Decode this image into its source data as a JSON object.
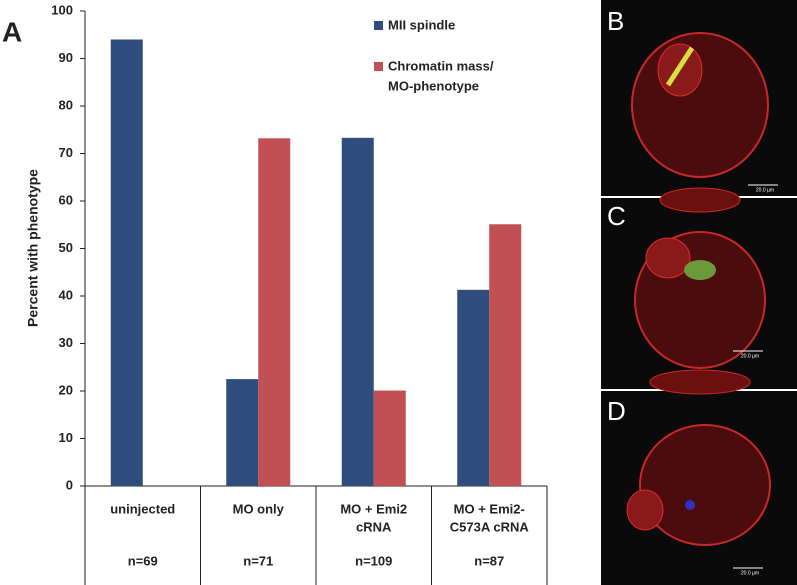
{
  "chart_data": {
    "type": "bar",
    "panel_label": "A",
    "y_label": "Percent with phenotype",
    "categories": [
      [
        "uninjected"
      ],
      [
        "MO only"
      ],
      [
        "MO + Emi2",
        "cRNA"
      ],
      [
        "MO + Emi2-",
        "C573A cRNA"
      ]
    ],
    "sample_sizes": [
      "n=69",
      "n=71",
      "n=109",
      "n=87"
    ],
    "series": [
      {
        "name": "MII spindle",
        "color": "#2e4c7c",
        "values": [
          94,
          22.5,
          73.3,
          41.3
        ]
      },
      {
        "name": [
          "Chromatin mass/",
          "MO-phenotype"
        ],
        "color": "#c05054",
        "values": [
          0,
          73.2,
          20.1,
          55.1
        ]
      }
    ],
    "ylim": [
      0,
      100
    ],
    "yticks": [
      0,
      10,
      20,
      30,
      40,
      50,
      60,
      70,
      80,
      90,
      100
    ]
  },
  "micrographs": {
    "panels": [
      "B",
      "C",
      "D"
    ],
    "scale_bar": "20.0 µm"
  }
}
